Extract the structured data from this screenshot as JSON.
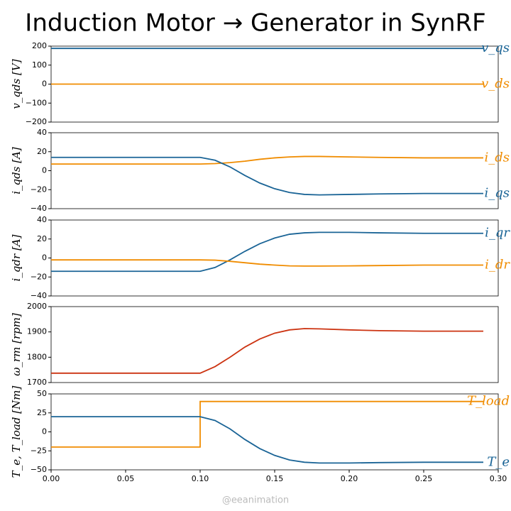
{
  "title": "Induction Motor → Generator in SynRF",
  "watermark": "@eeanimation",
  "chart_data": [
    {
      "type": "line",
      "ylabel": "v_qds [V]",
      "xlim": [
        0,
        0.3
      ],
      "ylim": [
        -200,
        200
      ],
      "yticks": [
        200,
        100,
        0,
        {
          "value": -100,
          "label": "−100"
        },
        {
          "value": -200,
          "label": "−200"
        }
      ],
      "x": [
        0,
        0.29
      ],
      "series": [
        {
          "name": "v_qs",
          "color": "#1a6496",
          "values": [
            188,
            188
          ]
        },
        {
          "name": "v_ds",
          "color": "#f08c00",
          "values": [
            0,
            0
          ]
        }
      ]
    },
    {
      "type": "line",
      "ylabel": "i_qds [A]",
      "xlim": [
        0,
        0.3
      ],
      "ylim": [
        -40,
        40
      ],
      "yticks": [
        40,
        20,
        0,
        {
          "value": -20,
          "label": "−20"
        },
        {
          "value": -40,
          "label": "−40"
        }
      ],
      "x": [
        0,
        0.05,
        0.1,
        0.11,
        0.12,
        0.13,
        0.14,
        0.15,
        0.16,
        0.17,
        0.18,
        0.2,
        0.22,
        0.25,
        0.29
      ],
      "series": [
        {
          "name": "i_ds",
          "color": "#f08c00",
          "values": [
            7,
            7,
            7,
            7.5,
            8.5,
            10,
            12,
            13.5,
            14.5,
            15,
            15,
            14.5,
            14,
            13.5,
            13.5
          ]
        },
        {
          "name": "i_qs",
          "color": "#1a6496",
          "values": [
            14,
            14,
            14,
            11,
            4,
            -5,
            -13,
            -19,
            -23,
            -25,
            -25.5,
            -25,
            -24.5,
            -24,
            -24
          ]
        }
      ]
    },
    {
      "type": "line",
      "ylabel": "i_qdr [A]",
      "xlim": [
        0,
        0.3
      ],
      "ylim": [
        -40,
        40
      ],
      "yticks": [
        40,
        20,
        0,
        {
          "value": -20,
          "label": "−20"
        },
        {
          "value": -40,
          "label": "−40"
        }
      ],
      "x": [
        0,
        0.05,
        0.1,
        0.11,
        0.12,
        0.13,
        0.14,
        0.15,
        0.16,
        0.17,
        0.18,
        0.2,
        0.22,
        0.25,
        0.29
      ],
      "series": [
        {
          "name": "i_qr",
          "color": "#1a6496",
          "values": [
            -14,
            -14,
            -14,
            -10,
            -2,
            7,
            15,
            21,
            25,
            26.5,
            27,
            27,
            26.5,
            26,
            26
          ]
        },
        {
          "name": "i_dr",
          "color": "#f08c00",
          "values": [
            -2,
            -2,
            -2,
            -2.3,
            -3.5,
            -5,
            -6.5,
            -7.5,
            -8.3,
            -8.5,
            -8.5,
            -8.3,
            -8,
            -7.5,
            -7.5
          ]
        }
      ]
    },
    {
      "type": "line",
      "ylabel": "ω_rm [rpm]",
      "xlim": [
        0,
        0.3
      ],
      "ylim": [
        1700,
        2000
      ],
      "yticks": [
        2000,
        1900,
        1800,
        1700
      ],
      "x": [
        0,
        0.05,
        0.1,
        0.11,
        0.12,
        0.13,
        0.14,
        0.15,
        0.16,
        0.17,
        0.18,
        0.2,
        0.22,
        0.25,
        0.29
      ],
      "series": [
        {
          "color": "#cc3311",
          "values": [
            1737,
            1737,
            1737,
            1763,
            1800,
            1840,
            1872,
            1895,
            1908,
            1913,
            1912,
            1908,
            1905,
            1903,
            1903
          ]
        }
      ]
    },
    {
      "type": "line",
      "ylabel": "T_e, T_load [Nm]",
      "xlim": [
        0,
        0.3
      ],
      "ylim": [
        -50,
        50
      ],
      "yticks": [
        50,
        25,
        0,
        {
          "value": -25,
          "label": "−25"
        },
        {
          "value": -50,
          "label": "−50"
        }
      ],
      "xticks": [
        {
          "value": 0,
          "label": "0.00"
        },
        0.05,
        {
          "value": 0.1,
          "label": "0.10"
        },
        0.15,
        {
          "value": 0.2,
          "label": "0.20"
        },
        0.25,
        {
          "value": 0.3,
          "label": "0.30"
        }
      ],
      "x": [
        0,
        0.05,
        0.1,
        0.1,
        0.11,
        0.12,
        0.13,
        0.14,
        0.15,
        0.16,
        0.17,
        0.18,
        0.2,
        0.22,
        0.25,
        0.29
      ],
      "series": [
        {
          "name": "T_load",
          "color": "#f08c00",
          "values": [
            -20,
            -20,
            -20,
            40,
            40,
            40,
            40,
            40,
            40,
            40,
            40,
            40,
            40,
            40,
            40,
            40
          ]
        },
        {
          "name": "T_e",
          "color": "#1a6496",
          "values": [
            20,
            20,
            20,
            20,
            15,
            4,
            -10,
            -22,
            -31,
            -37,
            -40,
            -41,
            -41,
            -40.5,
            -40,
            -40
          ]
        }
      ]
    }
  ]
}
